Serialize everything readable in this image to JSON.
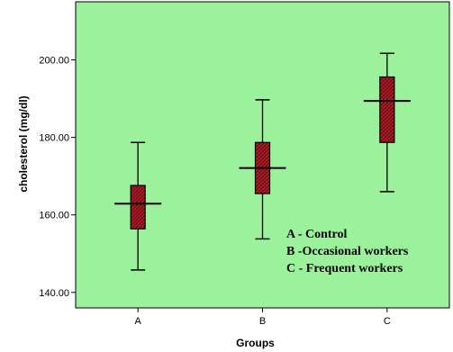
{
  "chart_data": {
    "type": "boxplot",
    "xlabel": "Groups",
    "ylabel": "cholesterol (mg/dl)",
    "ylim": [
      136,
      215
    ],
    "yticks": [
      140,
      160,
      180,
      200
    ],
    "ytick_labels": [
      "140.00",
      "160.00",
      "180.00",
      "200.00"
    ],
    "categories": [
      "A",
      "B",
      "C"
    ],
    "boxes": [
      {
        "category": "A",
        "whisker_low": 145.8,
        "q1": 156.4,
        "median": 162.9,
        "q3": 167.6,
        "whisker_high": 178.7
      },
      {
        "category": "B",
        "whisker_low": 153.8,
        "q1": 165.5,
        "median": 172.1,
        "q3": 178.7,
        "whisker_high": 189.7
      },
      {
        "category": "C",
        "whisker_low": 166.0,
        "q1": 178.7,
        "median": 189.4,
        "q3": 195.6,
        "whisker_high": 201.7
      }
    ],
    "legend": [
      "A - Control",
      "B -Occasional workers",
      "C - Frequent workers"
    ],
    "legend_position": "bottom-right",
    "colors": {
      "plot_background": "#9CF29C",
      "box_fill": "#B5202A",
      "box_pattern": "#5A0A10",
      "line": "#000000"
    },
    "grid": false
  }
}
